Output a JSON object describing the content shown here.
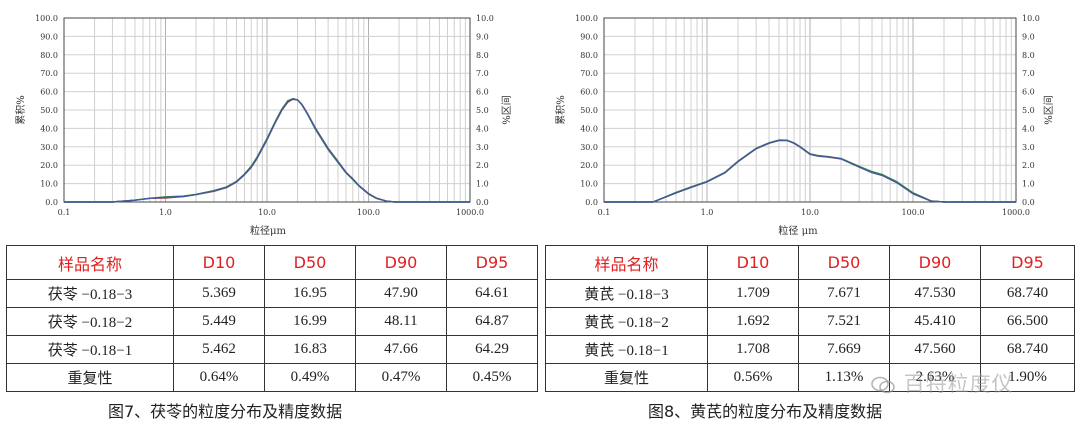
{
  "charts": [
    {
      "ylabel_left": "累积%",
      "ylabel_right": "%区间",
      "xlabel": "粒径μm",
      "y_left_ticks": [
        "0.0",
        "10.0",
        "20.0",
        "30.0",
        "40.0",
        "50.0",
        "60.0",
        "70.0",
        "80.0",
        "90.0",
        "100.0"
      ],
      "y_right_ticks": [
        "0.0",
        "1.0",
        "2.0",
        "3.0",
        "4.0",
        "5.0",
        "6.0",
        "7.0",
        "8.0",
        "9.0",
        "10.0"
      ],
      "x_ticks": [
        "0.1",
        "1.0",
        "10.0",
        "100.0",
        "1000.0"
      ]
    },
    {
      "ylabel_left": "累积%",
      "ylabel_right": "%区间",
      "xlabel": "粒径 μm",
      "y_left_ticks": [
        "0.0",
        "10.0",
        "20.0",
        "30.0",
        "40.0",
        "50.0",
        "60.0",
        "70.0",
        "80.0",
        "90.0",
        "100.0"
      ],
      "y_right_ticks": [
        "0.0",
        "1.0",
        "2.0",
        "3.0",
        "4.0",
        "5.0",
        "6.0",
        "7.0",
        "8.0",
        "9.0",
        "10.0"
      ],
      "x_ticks": [
        "0.1",
        "1.0",
        "10.0",
        "100.0",
        "1000.0"
      ]
    }
  ],
  "chart_data": [
    {
      "type": "line",
      "xscale": "log",
      "xlim": [
        0.1,
        1000
      ],
      "ylim": [
        0,
        100
      ],
      "y2lim": [
        0,
        10
      ],
      "xlabel": "粒径μm",
      "ylabel": "累积%",
      "y2label": "%区间",
      "series": [
        {
          "axis": "y2",
          "color": "#3c5a9c",
          "x": [
            0.1,
            0.3,
            0.5,
            0.7,
            1.0,
            1.5,
            2,
            3,
            4,
            5,
            6,
            7,
            8,
            10,
            12,
            14,
            16,
            18,
            20,
            22,
            25,
            30,
            40,
            50,
            60,
            70,
            80,
            100,
            120,
            150,
            180,
            1000
          ],
          "y": [
            0,
            0,
            0.1,
            0.2,
            0.25,
            0.3,
            0.4,
            0.6,
            0.8,
            1.1,
            1.5,
            1.9,
            2.4,
            3.4,
            4.3,
            5.0,
            5.45,
            5.6,
            5.55,
            5.3,
            4.8,
            4.0,
            2.9,
            2.2,
            1.6,
            1.25,
            0.9,
            0.45,
            0.2,
            0.05,
            0,
            0
          ]
        },
        {
          "axis": "y2",
          "color": "#3c8a4a",
          "x": [
            0.1,
            0.3,
            0.5,
            0.7,
            1.0,
            1.5,
            2,
            3,
            4,
            5,
            6,
            7,
            8,
            10,
            12,
            14,
            16,
            18,
            20,
            22,
            25,
            30,
            40,
            50,
            60,
            70,
            80,
            100,
            120,
            150,
            180,
            1000
          ],
          "y": [
            0,
            0,
            0.1,
            0.2,
            0.28,
            0.32,
            0.42,
            0.62,
            0.82,
            1.12,
            1.52,
            1.95,
            2.45,
            3.45,
            4.35,
            5.05,
            5.5,
            5.62,
            5.55,
            5.28,
            4.78,
            3.95,
            2.85,
            2.15,
            1.58,
            1.22,
            0.88,
            0.43,
            0.19,
            0.05,
            0,
            0
          ]
        },
        {
          "axis": "y2",
          "color": "#c04040",
          "x": [
            0.1,
            0.3,
            0.5,
            0.7,
            1.0,
            1.5,
            2,
            3,
            4,
            5,
            6,
            7,
            8,
            10,
            12,
            14,
            16,
            18,
            20,
            22,
            25,
            30,
            40,
            50,
            60,
            70,
            80,
            100,
            120,
            150,
            180,
            1000
          ],
          "y": [
            0,
            0,
            0.1,
            0.2,
            0.22,
            0.3,
            0.4,
            0.58,
            0.78,
            1.08,
            1.48,
            1.88,
            2.38,
            3.38,
            4.28,
            4.98,
            5.42,
            5.58,
            5.54,
            5.32,
            4.82,
            4.02,
            2.92,
            2.22,
            1.62,
            1.26,
            0.91,
            0.46,
            0.21,
            0.05,
            0,
            0
          ]
        }
      ]
    },
    {
      "type": "line",
      "xscale": "log",
      "xlim": [
        0.1,
        1000
      ],
      "ylim": [
        0,
        100
      ],
      "y2lim": [
        0,
        10
      ],
      "xlabel": "粒径 μm",
      "ylabel": "累积%",
      "y2label": "%区间",
      "series": [
        {
          "axis": "y2",
          "color": "#3c5a9c",
          "x": [
            0.1,
            0.2,
            0.3,
            0.5,
            0.7,
            1.0,
            1.5,
            2,
            3,
            4,
            5,
            6,
            7,
            8,
            10,
            12,
            15,
            20,
            25,
            30,
            40,
            50,
            70,
            100,
            150,
            200,
            1000
          ],
          "y": [
            0,
            0,
            0,
            0.5,
            0.8,
            1.1,
            1.6,
            2.2,
            2.9,
            3.2,
            3.35,
            3.35,
            3.2,
            3.0,
            2.6,
            2.5,
            2.45,
            2.35,
            2.1,
            1.9,
            1.6,
            1.45,
            1.05,
            0.45,
            0.05,
            0,
            0
          ]
        },
        {
          "axis": "y2",
          "color": "#3c8a4a",
          "x": [
            0.1,
            0.2,
            0.3,
            0.5,
            0.7,
            1.0,
            1.5,
            2,
            3,
            4,
            5,
            6,
            7,
            8,
            10,
            12,
            15,
            20,
            25,
            30,
            40,
            50,
            70,
            100,
            150,
            200,
            1000
          ],
          "y": [
            0,
            0,
            0,
            0.52,
            0.82,
            1.12,
            1.62,
            2.22,
            2.92,
            3.22,
            3.37,
            3.36,
            3.21,
            3.01,
            2.62,
            2.52,
            2.47,
            2.37,
            2.13,
            1.94,
            1.65,
            1.5,
            1.1,
            0.5,
            0.06,
            0,
            0
          ]
        },
        {
          "axis": "y2",
          "color": "#c04040",
          "x": [
            0.1,
            0.2,
            0.3,
            0.5,
            0.7,
            1.0,
            1.5,
            2,
            3,
            4,
            5,
            6,
            7,
            8,
            10,
            12,
            15,
            20,
            25,
            30,
            40,
            50,
            70,
            100,
            150,
            200,
            1000
          ],
          "y": [
            0,
            0,
            0,
            0.49,
            0.79,
            1.09,
            1.59,
            2.19,
            2.89,
            3.19,
            3.34,
            3.34,
            3.19,
            2.99,
            2.59,
            2.49,
            2.44,
            2.34,
            2.1,
            1.9,
            1.6,
            1.45,
            1.05,
            0.45,
            0.05,
            0,
            0
          ]
        }
      ]
    },
    {
      "type": "table",
      "headers": [
        "样品名称",
        "D10",
        "D50",
        "D90",
        "D95"
      ],
      "rows": [
        [
          "茯苓 −0.18−3",
          "5.369",
          "16.95",
          "47.90",
          "64.61"
        ],
        [
          "茯苓 −0.18−2",
          "5.449",
          "16.99",
          "48.11",
          "64.87"
        ],
        [
          "茯苓 −0.18−1",
          "5.462",
          "16.83",
          "47.66",
          "64.29"
        ],
        [
          "重复性",
          "0.64%",
          "0.49%",
          "0.47%",
          "0.45%"
        ]
      ]
    },
    {
      "type": "table",
      "headers": [
        "样品名称",
        "D10",
        "D50",
        "D90",
        "D95"
      ],
      "rows": [
        [
          "黄芪 −0.18−3",
          "1.709",
          "7.671",
          "47.530",
          "68.740"
        ],
        [
          "黄芪 −0.18−2",
          "1.692",
          "7.521",
          "45.410",
          "66.500"
        ],
        [
          "黄芪 −0.18−1",
          "1.708",
          "7.669",
          "47.560",
          "68.740"
        ],
        [
          "重复性",
          "0.56%",
          "1.13%",
          "2.63%",
          "1.90%"
        ]
      ]
    }
  ],
  "tables": [
    {
      "headers": [
        "样品名称",
        "D10",
        "D50",
        "D90",
        "D95"
      ],
      "rows": [
        [
          "茯苓 −0.18−3",
          "5.369",
          "16.95",
          "47.90",
          "64.61"
        ],
        [
          "茯苓 −0.18−2",
          "5.449",
          "16.99",
          "48.11",
          "64.87"
        ],
        [
          "茯苓 −0.18−1",
          "5.462",
          "16.83",
          "47.66",
          "64.29"
        ],
        [
          "重复性",
          "0.64%",
          "0.49%",
          "0.47%",
          "0.45%"
        ]
      ]
    },
    {
      "headers": [
        "样品名称",
        "D10",
        "D50",
        "D90",
        "D95"
      ],
      "rows": [
        [
          "黄芪 −0.18−3",
          "1.709",
          "7.671",
          "47.530",
          "68.740"
        ],
        [
          "黄芪 −0.18−2",
          "1.692",
          "7.521",
          "45.410",
          "66.500"
        ],
        [
          "黄芪 −0.18−1",
          "1.708",
          "7.669",
          "47.560",
          "68.740"
        ],
        [
          "重复性",
          "0.56%",
          "1.13%",
          "2.63%",
          "1.90%"
        ]
      ]
    }
  ],
  "captions": [
    "图7、茯苓的粒度分布及精度数据",
    "图8、黄芪的粒度分布及精度数据"
  ],
  "watermark": "百特粒度仪",
  "colors": {
    "header_text": "#e02020",
    "grid": "#c8c8c8"
  }
}
